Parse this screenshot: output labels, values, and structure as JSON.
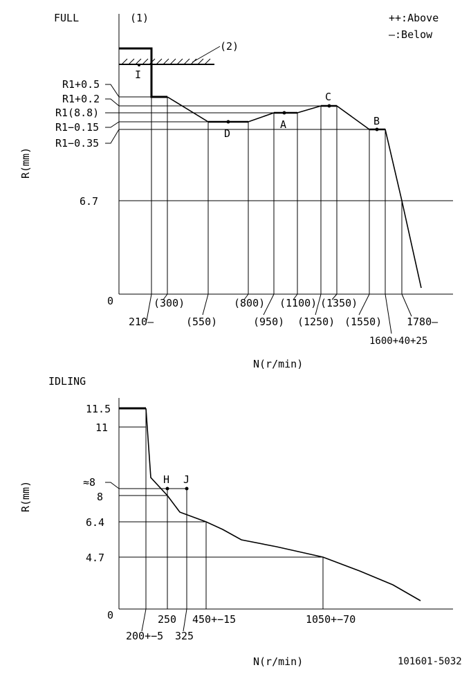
{
  "full": {
    "title": "FULL",
    "note1": "(1)",
    "note2": "(2)",
    "mark_I": "I",
    "legend_above": "++:Above",
    "legend_below": "—:Below",
    "ylabel": "R(mm)",
    "xlabel": "N(r/min)",
    "zero": "0",
    "y_r1p05": "R1+0.5",
    "y_r1p02": "R1+0.2",
    "y_r1": "R1(8.8)",
    "y_r1m015": "R1−0.15",
    "y_r1m035": "R1−0.35",
    "y_67": "6.7",
    "pt_A": "A",
    "pt_B": "B",
    "pt_C": "C",
    "pt_D": "D",
    "x_210": "210—",
    "x_300": "(300)",
    "x_550": "(550)",
    "x_800": "(800)",
    "x_950": "(950)",
    "x_1100": "(1100)",
    "x_1250": "(1250)",
    "x_1350": "(1350)",
    "x_1550": "(1550)",
    "x_1600": "1600+40+25",
    "x_1780": "1780—"
  },
  "idling": {
    "title": "IDLING",
    "ylabel": "R(mm)",
    "xlabel": "N(r/min)",
    "zero": "0",
    "y_115": "11.5",
    "y_11": "11",
    "y_approx8": "≈8",
    "y_8": "8",
    "y_64": "6.4",
    "y_47": "4.7",
    "pt_H": "H",
    "pt_J": "J",
    "x_200": "200+−5",
    "x_250": "250",
    "x_325": "325",
    "x_450": "450+−15",
    "x_1050": "1050+−70"
  },
  "code": "101601-5032"
}
